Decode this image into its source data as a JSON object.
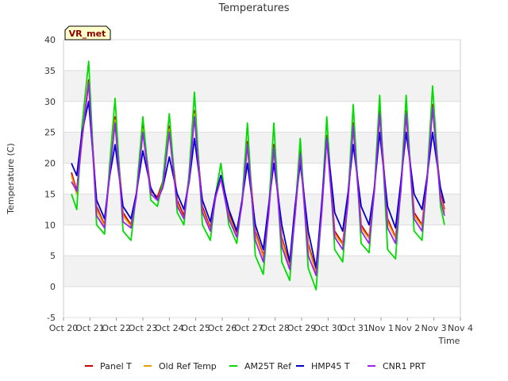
{
  "chart_data": {
    "type": "line",
    "title": "Temperatures",
    "xlabel": "Time",
    "ylabel": "Temperature (C)",
    "badge": "VR_met",
    "ylim": [
      -5,
      40
    ],
    "yticks": [
      -5,
      0,
      5,
      10,
      15,
      20,
      25,
      30,
      35,
      40
    ],
    "xlim": [
      0,
      15
    ],
    "xticks": [
      {
        "x": 0,
        "label": "Oct 20"
      },
      {
        "x": 1,
        "label": "Oct 21"
      },
      {
        "x": 2,
        "label": "Oct 22"
      },
      {
        "x": 3,
        "label": "Oct 23"
      },
      {
        "x": 4,
        "label": "Oct 24"
      },
      {
        "x": 5,
        "label": "Oct 25"
      },
      {
        "x": 6,
        "label": "Oct 26"
      },
      {
        "x": 7,
        "label": "Oct 27"
      },
      {
        "x": 8,
        "label": "Oct 28"
      },
      {
        "x": 9,
        "label": "Oct 29"
      },
      {
        "x": 10,
        "label": "Oct 30"
      },
      {
        "x": 11,
        "label": "Oct 31"
      },
      {
        "x": 12,
        "label": "Nov 1"
      },
      {
        "x": 13,
        "label": "Nov 2"
      },
      {
        "x": 14,
        "label": "Nov 3"
      },
      {
        "x": 15,
        "label": "Nov 4"
      }
    ],
    "grid": true,
    "legend_position": "bottom",
    "series": [
      {
        "name": "Panel T",
        "color": "#cc0000",
        "x": [
          0.3,
          0.5,
          0.7,
          0.95,
          1.25,
          1.55,
          1.75,
          1.95,
          2.25,
          2.55,
          2.75,
          3.0,
          3.3,
          3.55,
          3.75,
          4.0,
          4.3,
          4.55,
          4.75,
          4.95,
          5.25,
          5.55,
          5.75,
          5.95,
          6.25,
          6.55,
          6.75,
          6.95,
          7.25,
          7.55,
          7.75,
          7.95,
          8.25,
          8.55,
          8.75,
          8.95,
          9.25,
          9.55,
          9.75,
          9.95,
          10.25,
          10.55,
          10.75,
          10.95,
          11.25,
          11.55,
          11.75,
          11.95,
          12.25,
          12.55,
          12.75,
          12.95,
          13.25,
          13.55,
          13.75,
          13.95,
          14.25,
          14.4
        ],
        "y": [
          18.5,
          15.5,
          24,
          33.5,
          13,
          10,
          19,
          27.5,
          12,
          10,
          15,
          26,
          15.5,
          14.5,
          17,
          26,
          14,
          11.5,
          18,
          28.5,
          13,
          9.5,
          15,
          18,
          12,
          8.5,
          14,
          23.5,
          9,
          5,
          12,
          23,
          8,
          3.5,
          12,
          22,
          7,
          2.5,
          12,
          24.5,
          9,
          7,
          14,
          26.5,
          10,
          8,
          16,
          28.5,
          11,
          8,
          16,
          28.5,
          12,
          10,
          18,
          29.5,
          15,
          12.5
        ]
      },
      {
        "name": "Old Ref Temp",
        "color": "#e8a000",
        "x": [
          0.3,
          0.5,
          0.7,
          0.95,
          1.25,
          1.55,
          1.75,
          1.95,
          2.25,
          2.55,
          2.75,
          3.0,
          3.3,
          3.55,
          3.75,
          4.0,
          4.3,
          4.55,
          4.75,
          4.95,
          5.25,
          5.55,
          5.75,
          5.95,
          6.25,
          6.55,
          6.75,
          6.95,
          7.25,
          7.55,
          7.75,
          7.95,
          8.25,
          8.55,
          8.75,
          8.95,
          9.25,
          9.55,
          9.75,
          9.95,
          10.25,
          10.55,
          10.75,
          10.95,
          11.25,
          11.55,
          11.75,
          11.95,
          12.25,
          12.55,
          12.75,
          12.95,
          13.25,
          13.55,
          13.75,
          13.95,
          14.25,
          14.4
        ],
        "y": [
          18,
          15,
          23.5,
          33,
          12.5,
          9.8,
          18.5,
          27,
          11.5,
          9.8,
          14.5,
          25.5,
          15,
          14,
          16.5,
          25.5,
          13.5,
          11,
          17.5,
          28,
          12.5,
          9.2,
          14.5,
          17.5,
          11.5,
          8.2,
          13.5,
          23,
          8.5,
          4.8,
          11.5,
          22.5,
          7.5,
          3.2,
          11.5,
          21.5,
          6.5,
          2.2,
          11.5,
          24,
          8.5,
          6.8,
          13.5,
          26,
          9.5,
          7.8,
          15.5,
          28,
          10.5,
          7.8,
          15.5,
          28,
          11.5,
          9.8,
          17.5,
          29,
          14.5,
          12
        ]
      },
      {
        "name": "AM25T Ref",
        "color": "#00dd00",
        "x": [
          0.3,
          0.5,
          0.7,
          0.95,
          1.25,
          1.55,
          1.75,
          1.95,
          2.25,
          2.55,
          2.75,
          3.0,
          3.3,
          3.55,
          3.75,
          4.0,
          4.3,
          4.55,
          4.75,
          4.95,
          5.25,
          5.55,
          5.75,
          5.95,
          6.25,
          6.55,
          6.75,
          6.95,
          7.25,
          7.55,
          7.75,
          7.95,
          8.25,
          8.55,
          8.75,
          8.95,
          9.25,
          9.55,
          9.75,
          9.95,
          10.25,
          10.55,
          10.75,
          10.95,
          11.25,
          11.55,
          11.75,
          11.95,
          12.25,
          12.55,
          12.75,
          12.95,
          13.25,
          13.55,
          13.75,
          13.95,
          14.25,
          14.4
        ],
        "y": [
          15,
          12.5,
          26,
          36.5,
          10,
          8.5,
          20,
          30.5,
          9,
          7.5,
          15,
          27.5,
          14,
          13,
          17,
          28,
          12,
          10,
          18.5,
          31.5,
          10,
          7.5,
          15,
          20,
          10,
          7,
          14,
          26.5,
          5,
          2,
          12,
          26.5,
          4,
          1,
          12,
          24,
          3,
          -0.5,
          12,
          27.5,
          6,
          4,
          14,
          29.5,
          7,
          5.5,
          16,
          31,
          6,
          4.5,
          16,
          31,
          9,
          7.5,
          18,
          32.5,
          13,
          10
        ]
      },
      {
        "name": "HMP45 T",
        "color": "#0000cc",
        "x": [
          0.3,
          0.5,
          0.7,
          0.95,
          1.25,
          1.55,
          1.75,
          1.95,
          2.25,
          2.55,
          2.75,
          3.0,
          3.3,
          3.55,
          3.75,
          4.0,
          4.3,
          4.55,
          4.75,
          4.95,
          5.25,
          5.55,
          5.75,
          5.95,
          6.25,
          6.55,
          6.75,
          6.95,
          7.25,
          7.55,
          7.75,
          7.95,
          8.25,
          8.55,
          8.75,
          8.95,
          9.25,
          9.55,
          9.75,
          9.95,
          10.25,
          10.55,
          10.75,
          10.95,
          11.25,
          11.55,
          11.75,
          11.95,
          12.25,
          12.55,
          12.75,
          12.95,
          13.25,
          13.55,
          13.75,
          13.95,
          14.25,
          14.4
        ],
        "y": [
          20,
          18,
          25,
          30,
          14,
          11,
          18,
          23,
          13,
          11,
          15,
          22,
          16,
          14,
          16,
          21,
          15,
          12.5,
          17,
          24,
          14,
          10.5,
          15,
          18,
          12.5,
          9,
          14,
          20,
          10,
          6,
          13,
          20,
          10,
          4,
          13,
          20,
          9,
          3,
          13,
          24,
          12,
          9,
          15,
          23,
          13,
          10,
          16,
          25,
          13,
          9.5,
          17,
          25,
          15,
          12.5,
          18,
          25,
          16,
          13.5
        ]
      },
      {
        "name": "CNR1 PRT",
        "color": "#a020f0",
        "x": [
          0.3,
          0.5,
          0.7,
          0.95,
          1.25,
          1.55,
          1.75,
          1.95,
          2.25,
          2.55,
          2.75,
          3.0,
          3.3,
          3.55,
          3.75,
          4.0,
          4.3,
          4.55,
          4.75,
          4.95,
          5.25,
          5.55,
          5.75,
          5.95,
          6.25,
          6.55,
          6.75,
          6.95,
          7.25,
          7.55,
          7.75,
          7.95,
          8.25,
          8.55,
          8.75,
          8.95,
          9.25,
          9.55,
          9.75,
          9.95,
          10.25,
          10.55,
          10.75,
          10.95,
          11.25,
          11.55,
          11.75,
          11.95,
          12.25,
          12.55,
          12.75,
          12.95,
          13.25,
          13.55,
          13.75,
          13.95,
          14.25,
          14.4
        ],
        "y": [
          17,
          15.5,
          24,
          33,
          11.5,
          9.5,
          18.5,
          26.5,
          10.5,
          9.5,
          14.5,
          25,
          15,
          14,
          16,
          25,
          13,
          11,
          17.5,
          27.5,
          12,
          9,
          14.5,
          17.5,
          11,
          8,
          13.5,
          23,
          7.5,
          4,
          11.5,
          22.5,
          6.5,
          2.8,
          11.5,
          21.5,
          5,
          1.8,
          11.5,
          24,
          8,
          6,
          13.5,
          26,
          9,
          7,
          15.5,
          28,
          9.5,
          7,
          15.5,
          28,
          11,
          9,
          17.5,
          29,
          14,
          11.5
        ]
      }
    ]
  }
}
